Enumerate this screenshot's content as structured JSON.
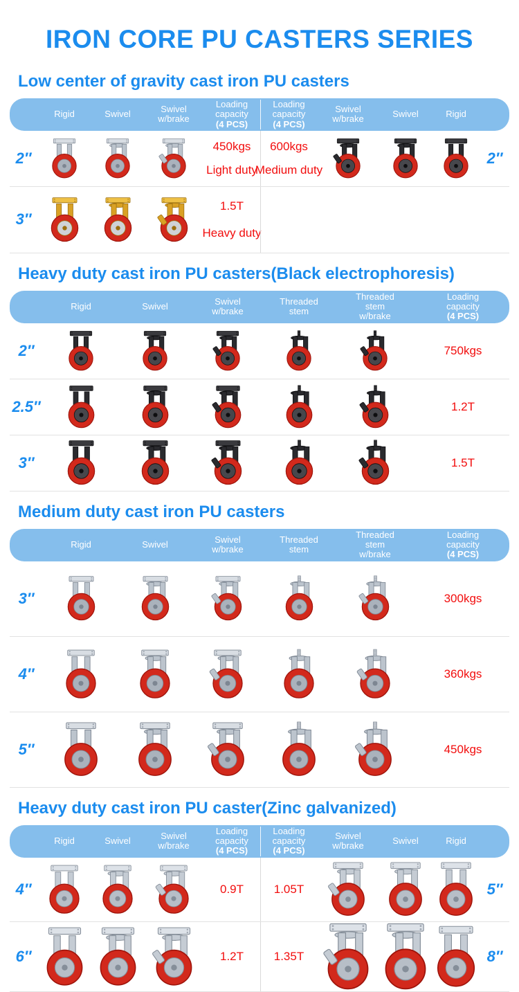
{
  "page": {
    "title": "IRON CORE PU CASTERS SERIES"
  },
  "colors": {
    "accent_blue": "#1b8cee",
    "header_bar_blue": "#85beec",
    "value_red": "#f20d0d",
    "wheel": {
      "outer": "#d2291c",
      "edge": "#9e140b"
    },
    "finishes": {
      "silver": {
        "plate": "#d8dde3",
        "body": "#bcc4cd",
        "dark": "#7d8692",
        "hub": "#aab2bc"
      },
      "black": {
        "plate": "#3a3a3e",
        "body": "#2a2a2e",
        "dark": "#0e0e10",
        "hub": "#47474c"
      },
      "gold": {
        "plate": "#eec045",
        "body": "#d9a125",
        "dark": "#9c6f0e",
        "hub": "#cfd2d6"
      },
      "zinc": {
        "plate": "#dde2e8",
        "body": "#c5ccd4",
        "dark": "#858e99",
        "hub": "#b7bec7"
      }
    }
  },
  "sections": [
    {
      "id": "low-center-gravity",
      "heading": "Low center of gravity cast iron PU casters",
      "layout": "mirrored",
      "header": [
        {
          "lines": [
            "Rigid"
          ]
        },
        {
          "lines": [
            "Swivel"
          ]
        },
        {
          "lines": [
            "Swivel",
            "w/brake"
          ]
        },
        {
          "lines": [
            "Loading",
            "capacity",
            "(4 PCS)"
          ],
          "bold_line": 2
        },
        {
          "lines": [
            "Loading",
            "capacity",
            "(4 PCS)"
          ],
          "bold_line": 2
        },
        {
          "lines": [
            "Swivel",
            "w/brake"
          ]
        },
        {
          "lines": [
            "Swivel"
          ]
        },
        {
          "lines": [
            "Rigid"
          ]
        }
      ],
      "rows": [
        {
          "size_left": "2″",
          "size_right": "2″",
          "left_finish": "silver",
          "right_finish": "black",
          "left_casters": [
            "rigid",
            "swivel",
            "swivel-brake"
          ],
          "right_casters": [
            "swivel-brake",
            "swivel",
            "rigid"
          ],
          "left_capacity": "450kgs",
          "left_duty": "Light duty",
          "right_capacity": "600kgs",
          "right_duty": "Medium duty",
          "row_class": "row-s1a"
        },
        {
          "size_left": "3″",
          "size_right": "",
          "left_finish": "gold",
          "right_finish": "gold",
          "left_casters": [
            "rigid",
            "swivel",
            "swivel-brake"
          ],
          "right_casters": [],
          "left_capacity": "1.5T",
          "left_duty": "Heavy duty",
          "right_capacity": "",
          "right_duty": "",
          "row_class": "row-s1b"
        }
      ]
    },
    {
      "id": "heavy-black-electrophoresis",
      "heading": "Heavy duty cast iron PU casters(Black electrophoresis)",
      "layout": "five",
      "header": [
        {
          "lines": [
            "Rigid"
          ]
        },
        {
          "lines": [
            "Swivel"
          ]
        },
        {
          "lines": [
            "Swivel",
            "w/brake"
          ]
        },
        {
          "lines": [
            "Threaded",
            "stem"
          ]
        },
        {
          "lines": [
            "Threaded",
            "stem",
            "w/brake"
          ]
        },
        {
          "lines": [
            "Loading",
            "capacity",
            "(4 PCS)"
          ],
          "bold_line": 2
        }
      ],
      "rows": [
        {
          "size": "2″",
          "finish": "black",
          "casters": [
            "rigid",
            "swivel",
            "swivel-brake",
            "stem",
            "stem-brake"
          ],
          "capacity": "750kgs",
          "row_class": "row-s2"
        },
        {
          "size": "2.5″",
          "finish": "black",
          "casters": [
            "rigid",
            "swivel",
            "swivel-brake",
            "stem",
            "stem-brake"
          ],
          "capacity": "1.2T",
          "row_class": "row-s2"
        },
        {
          "size": "3″",
          "finish": "black",
          "casters": [
            "rigid",
            "swivel",
            "swivel-brake",
            "stem",
            "stem-brake"
          ],
          "capacity": "1.5T",
          "row_class": "row-s2"
        }
      ]
    },
    {
      "id": "medium-duty",
      "heading": "Medium duty cast iron PU casters",
      "layout": "five",
      "header": [
        {
          "lines": [
            "Rigid"
          ]
        },
        {
          "lines": [
            "Swivel"
          ]
        },
        {
          "lines": [
            "Swivel",
            "w/brake"
          ]
        },
        {
          "lines": [
            "Threaded",
            "stem"
          ]
        },
        {
          "lines": [
            "Threaded",
            "stem",
            "w/brake"
          ]
        },
        {
          "lines": [
            "Loading",
            "capacity",
            "(4 PCS)"
          ],
          "bold_line": 2
        }
      ],
      "rows": [
        {
          "size": "3″",
          "finish": "silver",
          "casters": [
            "rigid",
            "swivel",
            "swivel-brake",
            "stem",
            "stem-brake"
          ],
          "capacity": "300kgs",
          "row_class": "row-s3"
        },
        {
          "size": "4″",
          "finish": "silver",
          "casters": [
            "rigid",
            "swivel",
            "swivel-brake",
            "stem",
            "stem-brake"
          ],
          "capacity": "360kgs",
          "row_class": "row-s3"
        },
        {
          "size": "5″",
          "finish": "silver",
          "casters": [
            "rigid",
            "swivel",
            "swivel-brake",
            "stem",
            "stem-brake"
          ],
          "capacity": "450kgs",
          "row_class": "row-s3"
        }
      ]
    },
    {
      "id": "heavy-zinc-galvanized",
      "heading": "Heavy duty cast iron PU caster(Zinc galvanized)",
      "layout": "mirrored",
      "header": [
        {
          "lines": [
            "Rigid"
          ]
        },
        {
          "lines": [
            "Swivel"
          ]
        },
        {
          "lines": [
            "Swivel",
            "w/brake"
          ]
        },
        {
          "lines": [
            "Loading",
            "capacity",
            "(4 PCS)"
          ],
          "bold_line": 2
        },
        {
          "lines": [
            "Loading",
            "capacity",
            "(4 PCS)"
          ],
          "bold_line": 2
        },
        {
          "lines": [
            "Swivel",
            "w/brake"
          ]
        },
        {
          "lines": [
            "Swivel"
          ]
        },
        {
          "lines": [
            "Rigid"
          ]
        }
      ],
      "rows": [
        {
          "size_left": "4″",
          "size_right": "5″",
          "left_finish": "zinc",
          "right_finish": "zinc",
          "left_casters": [
            "rigid",
            "swivel",
            "swivel-brake"
          ],
          "right_casters": [
            "swivel-brake",
            "swivel",
            "rigid"
          ],
          "left_capacity": "0.9T",
          "left_duty": "",
          "right_capacity": "1.05T",
          "right_duty": "",
          "row_class": "row-s4"
        },
        {
          "size_left": "6″",
          "size_right": "8″",
          "left_finish": "zinc",
          "right_finish": "zinc",
          "left_casters": [
            "rigid",
            "swivel",
            "swivel-brake"
          ],
          "right_casters": [
            "swivel-brake",
            "swivel",
            "rigid"
          ],
          "left_capacity": "1.2T",
          "left_duty": "",
          "right_capacity": "1.35T",
          "right_duty": "",
          "row_class": "row-s4"
        }
      ]
    }
  ]
}
